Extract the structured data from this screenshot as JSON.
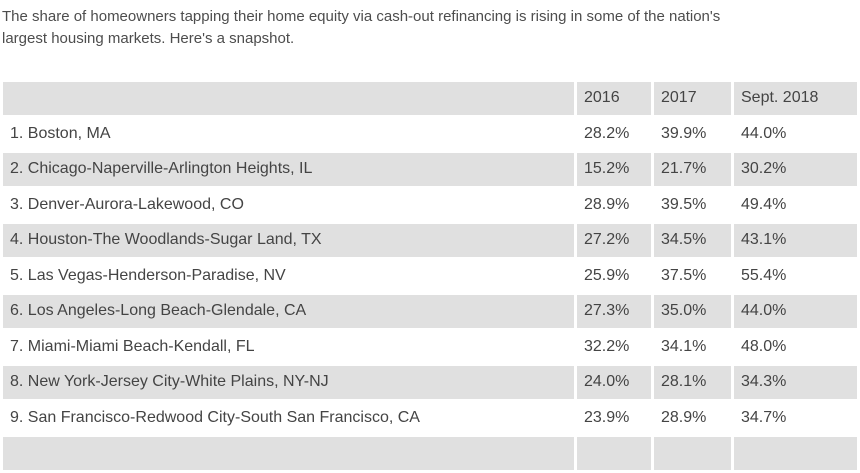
{
  "intro": {
    "line1": "The share of homeowners tapping their home equity via cash-out refinancing is rising in some of the nation's",
    "line2": "largest housing markets. Here's a snapshot."
  },
  "chart_data": {
    "type": "table",
    "columns": [
      "",
      "2016",
      "2017",
      "Sept. 2018"
    ],
    "rows": [
      [
        "1. Boston, MA",
        "28.2%",
        "39.9%",
        "44.0%"
      ],
      [
        "2. Chicago-Naperville-Arlington Heights, IL",
        "15.2%",
        "21.7%",
        "30.2%"
      ],
      [
        "3. Denver-Aurora-Lakewood, CO",
        "28.9%",
        "39.5%",
        "49.4%"
      ],
      [
        "4. Houston-The Woodlands-Sugar Land, TX",
        "27.2%",
        "34.5%",
        "43.1%"
      ],
      [
        "5. Las Vegas-Henderson-Paradise, NV",
        "25.9%",
        "37.5%",
        "55.4%"
      ],
      [
        "6. Los Angeles-Long Beach-Glendale, CA",
        "27.3%",
        "35.0%",
        "44.0%"
      ],
      [
        "7. Miami-Miami Beach-Kendall, FL",
        "32.2%",
        "34.1%",
        "48.0%"
      ],
      [
        "8. New York-Jersey City-White Plains, NY-NJ",
        "24.0%",
        "28.1%",
        "34.3%"
      ],
      [
        "9. San Francisco-Redwood City-South San Francisco, CA",
        "23.9%",
        "28.9%",
        "34.7%"
      ]
    ],
    "layout_hints": {
      "header_shaded": true,
      "alternating_rows_shaded": true,
      "partial_tenth_row_visible": true
    }
  },
  "colors": {
    "row_shade": "#e0e0e0",
    "table_text": "#444444",
    "intro_text": "#4d4d4d",
    "background": "#ffffff"
  }
}
